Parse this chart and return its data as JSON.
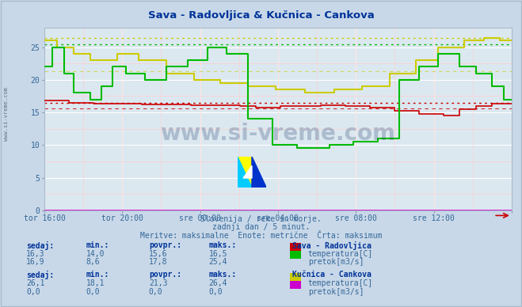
{
  "title": "Sava - Radovljica & Kučnica - Cankova",
  "title_color": "#003399",
  "bg_color": "#c8d8e8",
  "plot_bg_color": "#dce8f0",
  "grid_color_major": "#ffffff",
  "grid_color_minor": "#ffcccc",
  "ylim": [
    0,
    28
  ],
  "yticks": [
    0,
    5,
    10,
    15,
    20,
    25
  ],
  "xlabel_color": "#336699",
  "xtick_labels": [
    "tor 16:00",
    "tor 20:00",
    "sre 00:00",
    "sre 04:00",
    "sre 08:00",
    "sre 12:00",
    ""
  ],
  "subtitle_line1": "Slovenija / reke in morje.",
  "subtitle_line2": "zadnji dan / 5 minut.",
  "subtitle_line3": "Meritve: maksimalne  Enote: metrične  Črta: maksimum",
  "subtitle_color": "#336699",
  "watermark": "www.si-vreme.com",
  "watermark_color": "#1a3a6b",
  "sava_temp_color": "#cc0000",
  "sava_flow_color": "#00bb00",
  "kucnica_temp_color": "#cccc00",
  "kucnica_flow_color": "#cc00cc",
  "avg_sava_temp": 15.6,
  "avg_sava_flow": 17.8,
  "avg_kucnica_temp": 21.3,
  "max_sava_temp": 16.5,
  "max_sava_flow": 25.4,
  "max_kucnica_temp": 26.4,
  "max_kucnica_flow": 0.0,
  "table_header_color": "#003399",
  "table_value_color": "#336699",
  "border_color": "#aabbcc",
  "n_points": 288
}
